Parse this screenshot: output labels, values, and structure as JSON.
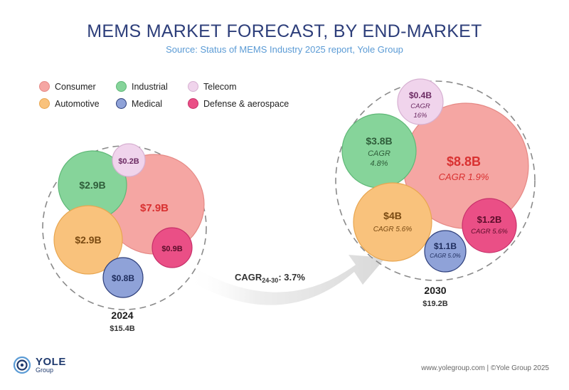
{
  "title": "MEMS MARKET FORECAST, BY END-MARKET",
  "subtitle": "Source: Status of MEMS Industry 2025 report, Yole Group",
  "legend": [
    {
      "name": "Consumer",
      "color": "#f5a6a3"
    },
    {
      "name": "Industrial",
      "color": "#86d49a"
    },
    {
      "name": "Telecom",
      "color": "#f0d4ec"
    },
    {
      "name": "Automotive",
      "color": "#f9c27c"
    },
    {
      "name": "Medical",
      "color": "#8fa2d8"
    },
    {
      "name": "Defense & aerospace",
      "color": "#ea4f86"
    }
  ],
  "chart_data": [
    {
      "type": "bubble",
      "year": "2024",
      "total": "$15.4B",
      "segments": [
        {
          "category": "Consumer",
          "value": 7.9,
          "label": "$7.9B"
        },
        {
          "category": "Industrial",
          "value": 2.9,
          "label": "$2.9B"
        },
        {
          "category": "Automotive",
          "value": 2.9,
          "label": "$2.9B"
        },
        {
          "category": "Telecom",
          "value": 0.2,
          "label": "$0.2B"
        },
        {
          "category": "Defense & aerospace",
          "value": 0.9,
          "label": "$0.9B"
        },
        {
          "category": "Medical",
          "value": 0.8,
          "label": "$0.8B"
        }
      ]
    },
    {
      "type": "bubble",
      "year": "2030",
      "total": "$19.2B",
      "segments": [
        {
          "category": "Consumer",
          "value": 8.8,
          "label": "$8.8B",
          "cagr": "CAGR 1.9%"
        },
        {
          "category": "Industrial",
          "value": 3.8,
          "label": "$3.8B",
          "cagr": "CAGR 4.8%"
        },
        {
          "category": "Automotive",
          "value": 4.0,
          "label": "$4B",
          "cagr": "CAGR 5.6%"
        },
        {
          "category": "Telecom",
          "value": 0.4,
          "label": "$0.4B",
          "cagr": "CAGR 16%"
        },
        {
          "category": "Defense & aerospace",
          "value": 1.2,
          "label": "$1.2B",
          "cagr": "CAGR 5.6%"
        },
        {
          "category": "Medical",
          "value": 1.1,
          "label": "$1.1B",
          "cagr": "CAGR 5.0%"
        }
      ]
    }
  ],
  "arrow_label": {
    "prefix": "CAGR",
    "sub": "24-30",
    "suffix": ": 3.7%"
  },
  "logo": {
    "main": "YOLE",
    "sub": "Group"
  },
  "footer": "www.yolegroup.com | ©Yole Group 2025"
}
